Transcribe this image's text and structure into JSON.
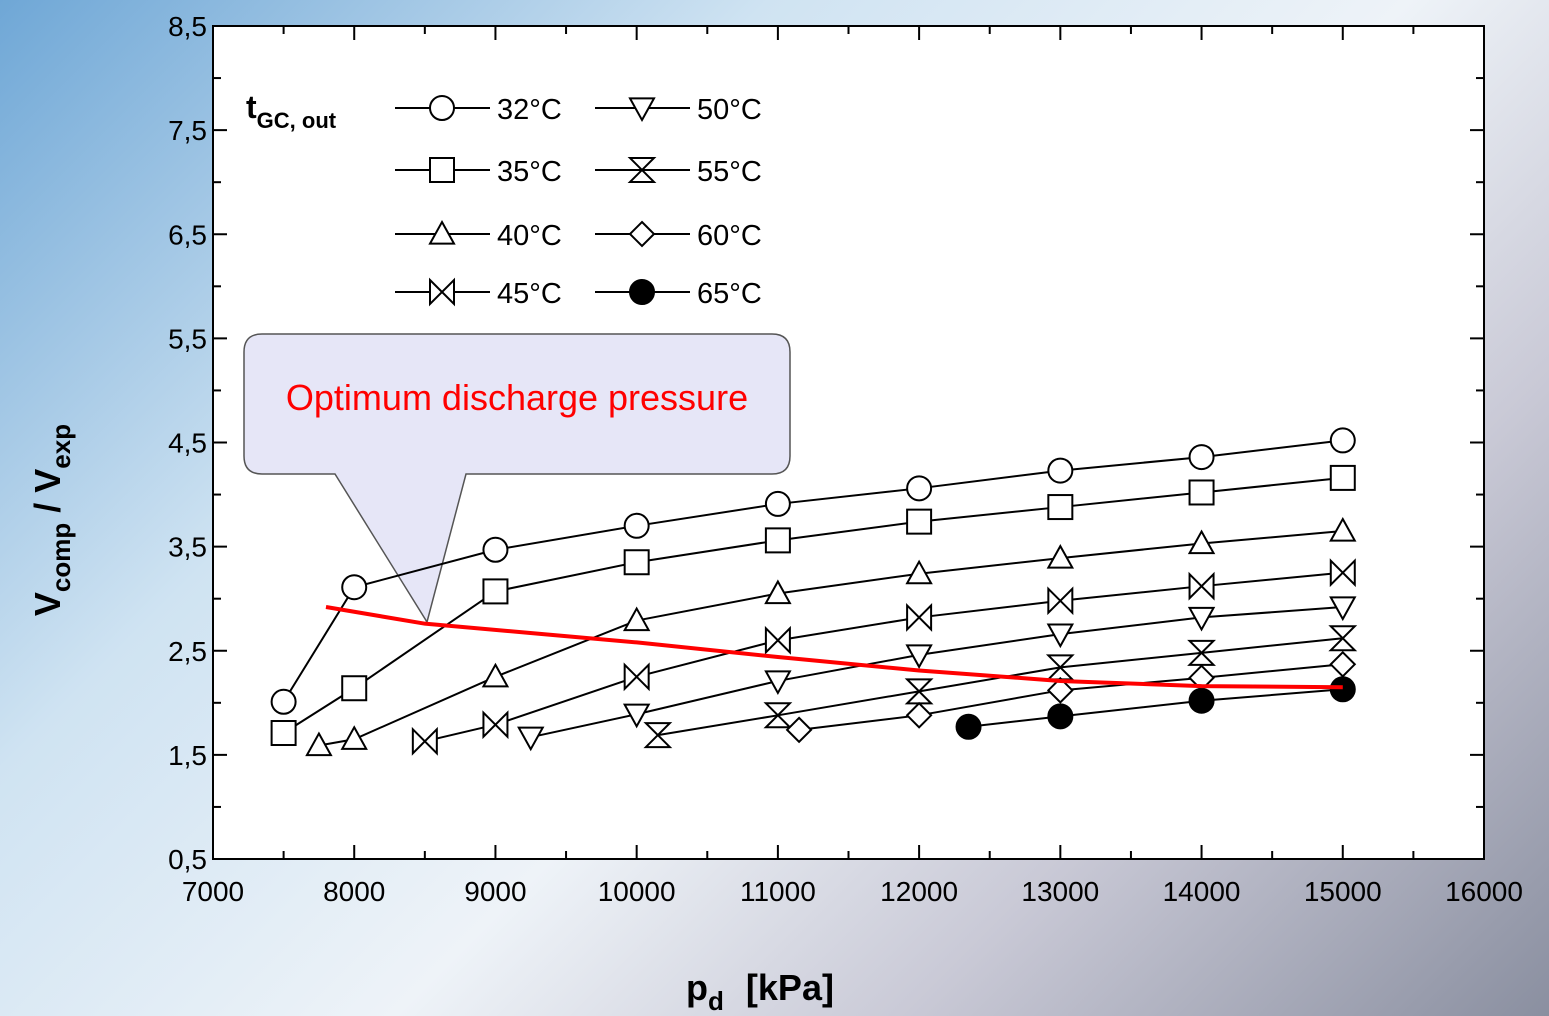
{
  "chart_data": {
    "type": "line",
    "xlabel": {
      "main": "p",
      "sub": "d",
      "unit": "[kPa]"
    },
    "ylabel": {
      "main1": "V",
      "sub1": "comp",
      "mid": " / V",
      "sub2": "exp"
    },
    "legend_title": {
      "main": "t",
      "sub": "GC, out"
    },
    "annotation": "Optimum discharge pressure",
    "xlim": [
      7000,
      16000
    ],
    "xticks": [
      7000,
      8000,
      9000,
      10000,
      11000,
      12000,
      13000,
      14000,
      15000,
      16000
    ],
    "ylim": [
      0.5,
      8.5
    ],
    "yticks": [
      {
        "value": 0.5,
        "label": "0,5"
      },
      {
        "value": 1.5,
        "label": "1,5"
      },
      {
        "value": 2.5,
        "label": "2,5"
      },
      {
        "value": 3.5,
        "label": "3,5"
      },
      {
        "value": 4.5,
        "label": "4,5"
      },
      {
        "value": 5.5,
        "label": "5,5"
      },
      {
        "value": 6.5,
        "label": "6,5"
      },
      {
        "value": 7.5,
        "label": "7,5"
      },
      {
        "value": 8.5,
        "label": "8,5"
      }
    ],
    "series": [
      {
        "name": "32°C",
        "color": "#000000",
        "marker": "circle",
        "x": [
          7500,
          8000,
          9000,
          10000,
          11000,
          12000,
          13000,
          14000,
          15000
        ],
        "values": [
          2.01,
          3.11,
          3.47,
          3.7,
          3.91,
          4.06,
          4.23,
          4.36,
          4.52
        ]
      },
      {
        "name": "35°C",
        "color": "#000000",
        "marker": "square",
        "x": [
          7500,
          8000,
          9000,
          10000,
          11000,
          12000,
          13000,
          14000,
          15000
        ],
        "values": [
          1.71,
          2.14,
          3.07,
          3.35,
          3.56,
          3.74,
          3.88,
          4.02,
          4.16
        ]
      },
      {
        "name": "40°C",
        "color": "#000000",
        "marker": "triangle-up",
        "x": [
          7750,
          8000,
          9000,
          10000,
          11000,
          12000,
          13000,
          14000,
          15000
        ],
        "values": [
          1.59,
          1.65,
          2.25,
          2.79,
          3.05,
          3.24,
          3.39,
          3.53,
          3.65
        ]
      },
      {
        "name": "45°C",
        "color": "#000000",
        "marker": "bowtie",
        "x": [
          8500,
          9000,
          10000,
          11000,
          12000,
          13000,
          14000,
          15000
        ],
        "values": [
          1.63,
          1.79,
          2.25,
          2.6,
          2.82,
          2.98,
          3.12,
          3.25
        ]
      },
      {
        "name": "50°C",
        "color": "#000000",
        "marker": "triangle-down",
        "x": [
          9250,
          10000,
          11000,
          12000,
          13000,
          14000,
          15000
        ],
        "values": [
          1.67,
          1.89,
          2.21,
          2.46,
          2.66,
          2.82,
          2.92
        ]
      },
      {
        "name": "55°C",
        "color": "#000000",
        "marker": "hourglass",
        "x": [
          10150,
          11000,
          12000,
          13000,
          14000,
          15000
        ],
        "values": [
          1.69,
          1.88,
          2.11,
          2.34,
          2.48,
          2.62
        ]
      },
      {
        "name": "60°C",
        "color": "#000000",
        "marker": "diamond",
        "x": [
          11150,
          12000,
          13000,
          14000,
          15000
        ],
        "values": [
          1.74,
          1.88,
          2.12,
          2.24,
          2.37
        ]
      },
      {
        "name": "65°C",
        "color": "#000000",
        "marker": "filled-circle",
        "x": [
          12350,
          13000,
          14000,
          15000
        ],
        "values": [
          1.77,
          1.87,
          2.02,
          2.13
        ]
      }
    ],
    "optimum_curve": {
      "color": "#ff0000",
      "x": [
        7800,
        8500,
        10000,
        11000,
        12000,
        13000,
        14000,
        15000
      ],
      "values": [
        2.92,
        2.76,
        2.58,
        2.44,
        2.31,
        2.21,
        2.16,
        2.15
      ]
    }
  }
}
